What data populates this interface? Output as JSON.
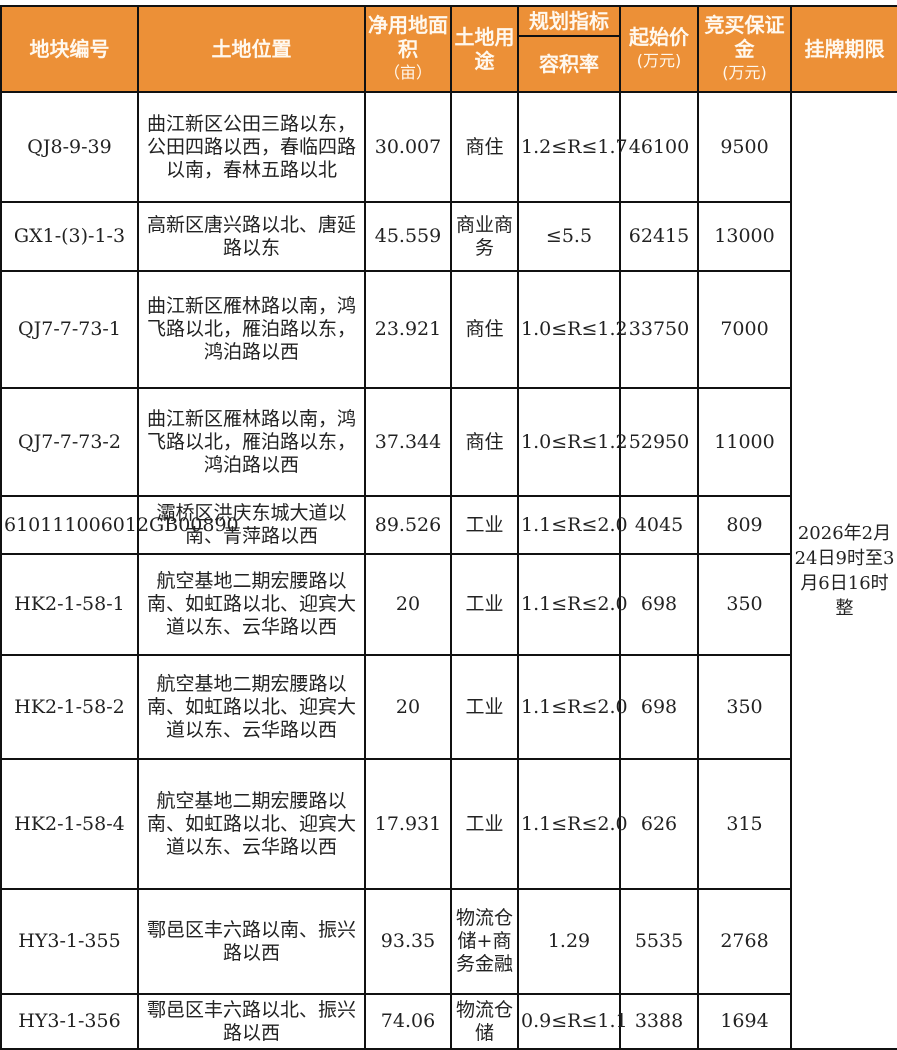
{
  "header": {
    "plot_id": "地块编号",
    "location": "土地位置",
    "area": "净用地面积",
    "area_unit": "（亩）",
    "use": "土地用途",
    "planning": "规划指标",
    "far": "容积率",
    "start_price": "起始价",
    "start_price_unit": "(万元)",
    "deposit": "竞买保证金",
    "deposit_unit": "(万元)",
    "period": "挂牌期限"
  },
  "rows": [
    {
      "id": "QJ8-9-39",
      "location": "曲江新区公田三路以东，公田四路以西，春临四路以南，春林五路以北",
      "area": "30.007",
      "use": "商住",
      "far": "1.2≤R≤1.7",
      "price": "46100",
      "deposit": "9500"
    },
    {
      "id": "GX1-(3)-1-3",
      "location": "高新区唐兴路以北、唐延路以东",
      "area": "45.559",
      "use": "商业商务",
      "far": "≤5.5",
      "price": "62415",
      "deposit": "13000"
    },
    {
      "id": "QJ7-7-73-1",
      "location": "曲江新区雁林路以南，鸿飞路以北，雁泊路以东，鸿泊路以西",
      "area": "23.921",
      "use": "商住",
      "far": "1.0≤R≤1.2",
      "price": "33750",
      "deposit": "7000"
    },
    {
      "id": "QJ7-7-73-2",
      "location": "曲江新区雁林路以南，鸿飞路以北，雁泊路以东，鸿泊路以西",
      "area": "37.344",
      "use": "商住",
      "far": "1.0≤R≤1.2",
      "price": "52950",
      "deposit": "11000"
    },
    {
      "id": "610111006012GB00890",
      "location": "灞桥区洪庆东城大道以南、青萍路以西",
      "area": "89.526",
      "use": "工业",
      "far": "1.1≤R≤2.0",
      "price": "4045",
      "deposit": "809"
    },
    {
      "id": "HK2-1-58-1",
      "location": "航空基地二期宏腰路以南、如虹路以北、迎宾大道以东、云华路以西",
      "area": "20",
      "use": "工业",
      "far": "1.1≤R≤2.0",
      "price": "698",
      "deposit": "350"
    },
    {
      "id": "HK2-1-58-2",
      "location": "航空基地二期宏腰路以南、如虹路以北、迎宾大道以东、云华路以西",
      "area": "20",
      "use": "工业",
      "far": "1.1≤R≤2.0",
      "price": "698",
      "deposit": "350"
    },
    {
      "id": "HK2-1-58-4",
      "location": "航空基地二期宏腰路以南、如虹路以北、迎宾大道以东、云华路以西",
      "area": "17.931",
      "use": "工业",
      "far": "1.1≤R≤2.0",
      "price": "626",
      "deposit": "315"
    },
    {
      "id": "HY3-1-355",
      "location": "鄠邑区丰六路以南、振兴路以西",
      "area": "93.35",
      "use": "物流仓储+商务金融",
      "far": "1.29",
      "price": "5535",
      "deposit": "2768"
    },
    {
      "id": "HY3-1-356",
      "location": "鄠邑区丰六路以北、振兴路以西",
      "area": "74.06",
      "use": "物流仓储",
      "far": "0.9≤R≤1.1",
      "price": "3388",
      "deposit": "1694"
    }
  ],
  "period": "2026年2月24日9时至3月6日16时整",
  "colors": {
    "header_bg": "#ec9037",
    "header_text": "#fff8ee",
    "border": "#111111"
  }
}
